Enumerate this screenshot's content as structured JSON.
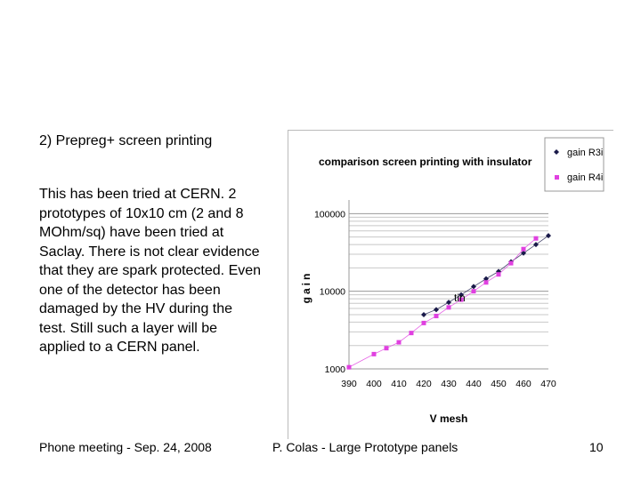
{
  "slide": {
    "heading": "2) Prepreg+ screen printing",
    "body": "This has  been tried at CERN. 2 prototypes of 10x10 cm (2 and 8 MOhm/sq) have been tried at Saclay. There is not clear evidence that they are spark protected. Even one of the detector has been damaged by the HV during the test. Still such a layer will be applied to a CERN panel.",
    "footer_left": "Phone meeting - Sep. 24, 2008",
    "footer_center": "P. Colas - Large Prototype panels",
    "page_number": "10"
  },
  "chart_data": {
    "type": "scatter",
    "title": "comparison screen printing with insulator",
    "xlabel": "V mesh",
    "ylabel": "gain",
    "annotation": "tin",
    "y_scale": "log",
    "x_ticks": [
      "390",
      "400",
      "410",
      "420",
      "430",
      "440",
      "450",
      "460",
      "470"
    ],
    "y_ticks": [
      "1000",
      "10000",
      "100000"
    ],
    "xlim": [
      390,
      470
    ],
    "ylim": [
      1000,
      150000
    ],
    "grid": "horizontal",
    "legend_position": "top-right",
    "colors": {
      "gain R3i": "#1a1a4a",
      "gain R4i": "#e040e0"
    },
    "series": [
      {
        "name": "gain R3i",
        "marker": "diamond",
        "x": [
          420,
          425,
          430,
          435,
          440,
          445,
          450,
          455,
          460,
          465,
          470
        ],
        "y": [
          5000,
          5800,
          7200,
          9000,
          11500,
          14500,
          18000,
          24000,
          31000,
          40000,
          52000
        ]
      },
      {
        "name": "gain R4i",
        "marker": "square",
        "x": [
          390,
          400,
          405,
          410,
          415,
          420,
          425,
          430,
          435,
          440,
          445,
          450,
          455,
          460,
          465
        ],
        "y": [
          1050,
          1550,
          1850,
          2200,
          2900,
          3900,
          4800,
          6200,
          7800,
          10000,
          13000,
          16500,
          23000,
          35000,
          48000
        ]
      }
    ]
  }
}
